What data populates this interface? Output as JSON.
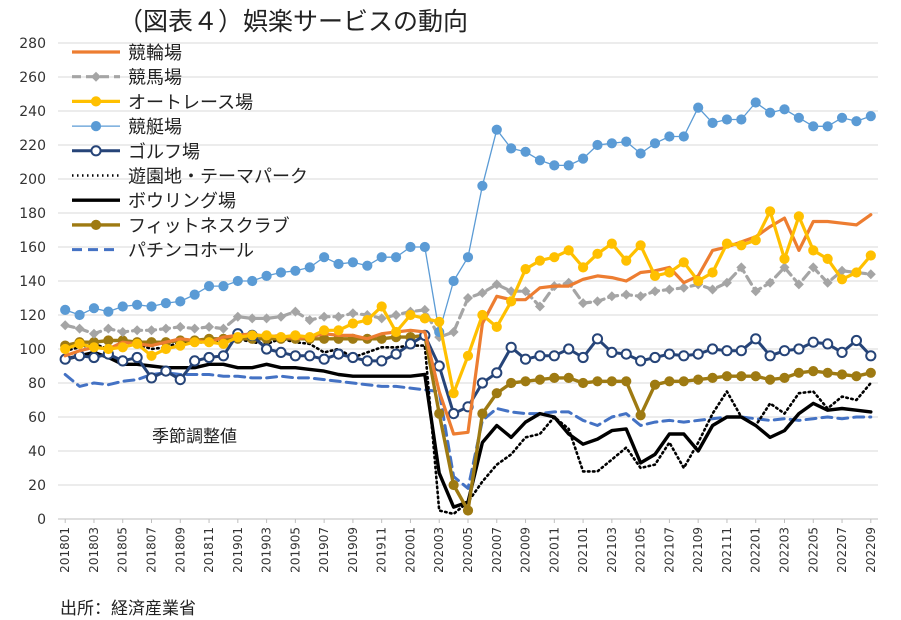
{
  "colors": {
    "keirin": "#ED7D31",
    "keiba": "#A5A5A5",
    "autorace": "#FFC000",
    "kyotei": "#5B9BD5",
    "golf": "#264478",
    "yuenchi": "#000000",
    "bowling": "#000000",
    "fitness": "#9E7A12",
    "pachinko": "#4472C4"
  },
  "chart_data": {
    "type": "line",
    "title": "（図表４）娯楽サービスの動向",
    "annotation": "季節調整値",
    "source": "出所：経済産業省",
    "ylim": [
      0,
      280
    ],
    "yticks": [
      0,
      20,
      40,
      60,
      80,
      100,
      120,
      140,
      160,
      180,
      200,
      220,
      240,
      260,
      280
    ],
    "x_tick_labels": [
      "201801",
      "201803",
      "201805",
      "201807",
      "201809",
      "201811",
      "201901",
      "201903",
      "201905",
      "201907",
      "201909",
      "201911",
      "202001",
      "202003",
      "202005",
      "202007",
      "202009",
      "202011",
      "202101",
      "202103",
      "202105",
      "202107",
      "202109",
      "202111",
      "202201",
      "202203",
      "202205",
      "202207",
      "202209"
    ],
    "x": [
      "201801",
      "201802",
      "201803",
      "201804",
      "201805",
      "201806",
      "201807",
      "201808",
      "201809",
      "201810",
      "201811",
      "201812",
      "201901",
      "201902",
      "201903",
      "201904",
      "201905",
      "201906",
      "201907",
      "201908",
      "201909",
      "201910",
      "201911",
      "201912",
      "202001",
      "202002",
      "202003",
      "202004",
      "202005",
      "202006",
      "202007",
      "202008",
      "202009",
      "202010",
      "202011",
      "202012",
      "202101",
      "202102",
      "202103",
      "202104",
      "202105",
      "202106",
      "202107",
      "202108",
      "202109",
      "202110",
      "202111",
      "202112",
      "202201",
      "202202",
      "202203",
      "202204",
      "202205",
      "202206",
      "202207",
      "202208",
      "202209"
    ],
    "legend_position": "top-left",
    "series": [
      {
        "name": "競輪場",
        "key": "keirin",
        "style": "line-thick",
        "values": [
          96,
          99,
          101,
          100,
          104,
          103,
          102,
          104,
          106,
          105,
          104,
          107,
          108,
          109,
          107,
          108,
          106,
          107,
          109,
          108,
          108,
          106,
          109,
          110,
          111,
          110,
          75,
          50,
          51,
          115,
          131,
          129,
          129,
          136,
          137,
          137,
          141,
          143,
          142,
          140,
          145,
          146,
          148,
          139,
          143,
          158,
          160,
          163,
          166,
          172,
          177,
          158,
          175,
          175,
          174,
          173,
          179
        ]
      },
      {
        "name": "競馬場",
        "key": "keiba",
        "style": "dash-marker",
        "values": [
          114,
          112,
          109,
          112,
          110,
          111,
          111,
          112,
          113,
          112,
          113,
          112,
          119,
          118,
          118,
          119,
          122,
          117,
          119,
          119,
          121,
          120,
          118,
          120,
          122,
          123,
          107,
          110,
          130,
          133,
          138,
          134,
          134,
          125,
          137,
          139,
          127,
          128,
          131,
          132,
          131,
          134,
          135,
          136,
          138,
          135,
          139,
          148,
          134,
          139,
          148,
          138,
          148,
          139,
          146,
          145,
          144
        ]
      },
      {
        "name": "オートレース場",
        "key": "autorace",
        "style": "line-marker",
        "values": [
          100,
          103,
          101,
          100,
          101,
          103,
          96,
          100,
          102,
          104,
          104,
          103,
          107,
          108,
          108,
          107,
          108,
          107,
          111,
          111,
          115,
          117,
          125,
          110,
          120,
          118,
          116,
          74,
          96,
          120,
          113,
          128,
          147,
          152,
          154,
          158,
          148,
          156,
          162,
          152,
          161,
          143,
          145,
          151,
          140,
          145,
          162,
          161,
          164,
          181,
          153,
          178,
          158,
          153,
          141,
          145,
          155
        ]
      },
      {
        "name": "競艇場",
        "key": "kyotei",
        "style": "thin-marker",
        "values": [
          123,
          120,
          124,
          122,
          125,
          126,
          125,
          127,
          128,
          132,
          137,
          137,
          140,
          140,
          143,
          145,
          146,
          148,
          154,
          150,
          151,
          149,
          154,
          154,
          160,
          160,
          110,
          140,
          154,
          196,
          229,
          218,
          216,
          211,
          208,
          208,
          212,
          220,
          221,
          222,
          215,
          221,
          225,
          225,
          242,
          233,
          235,
          235,
          245,
          239,
          241,
          236,
          231,
          231,
          236,
          234,
          237
        ]
      },
      {
        "name": "ゴルフ場",
        "key": "golf",
        "style": "line-open-marker",
        "values": [
          94,
          96,
          95,
          97,
          93,
          95,
          83,
          87,
          82,
          93,
          95,
          96,
          109,
          108,
          100,
          98,
          96,
          96,
          94,
          97,
          95,
          93,
          93,
          97,
          103,
          108,
          90,
          62,
          66,
          80,
          86,
          101,
          94,
          96,
          96,
          100,
          95,
          106,
          98,
          97,
          93,
          95,
          97,
          96,
          97,
          100,
          99,
          99,
          106,
          96,
          99,
          100,
          104,
          103,
          98,
          105,
          96
        ]
      },
      {
        "name": "遊園地・テーマパーク",
        "key": "yuenchi",
        "style": "dotted",
        "values": [
          99,
          101,
          103,
          100,
          101,
          103,
          100,
          101,
          104,
          103,
          105,
          104,
          106,
          104,
          103,
          106,
          104,
          103,
          98,
          100,
          95,
          98,
          101,
          101,
          102,
          102,
          5,
          3,
          10,
          22,
          32,
          38,
          48,
          50,
          60,
          53,
          28,
          28,
          35,
          42,
          30,
          32,
          45,
          30,
          45,
          62,
          75,
          60,
          55,
          68,
          62,
          74,
          75,
          65,
          72,
          70,
          80
        ]
      },
      {
        "name": "ボウリング場",
        "key": "bowling",
        "style": "line-bold",
        "values": [
          94,
          96,
          98,
          95,
          91,
          91,
          90,
          89,
          89,
          89,
          91,
          91,
          89,
          89,
          91,
          89,
          89,
          88,
          87,
          85,
          84,
          84,
          84,
          84,
          84,
          85,
          27,
          7,
          10,
          45,
          55,
          48,
          57,
          62,
          60,
          50,
          44,
          47,
          52,
          53,
          33,
          38,
          50,
          50,
          40,
          55,
          60,
          60,
          55,
          48,
          52,
          62,
          68,
          64,
          65,
          64,
          63
        ]
      },
      {
        "name": "フィットネスクラブ",
        "key": "fitness",
        "style": "line-marker-thick",
        "values": [
          102,
          104,
          104,
          105,
          105,
          104,
          104,
          104,
          105,
          105,
          106,
          106,
          106,
          106,
          106,
          106,
          106,
          106,
          106,
          106,
          106,
          106,
          106,
          107,
          107,
          108,
          62,
          20,
          5,
          62,
          74,
          80,
          81,
          82,
          83,
          83,
          80,
          81,
          81,
          81,
          61,
          79,
          81,
          81,
          82,
          83,
          84,
          84,
          84,
          82,
          83,
          86,
          87,
          86,
          85,
          84,
          86
        ]
      },
      {
        "name": "パチンコホール",
        "key": "pachinko",
        "style": "dashed",
        "values": [
          85,
          78,
          80,
          79,
          81,
          82,
          85,
          86,
          85,
          85,
          85,
          84,
          84,
          83,
          83,
          84,
          83,
          83,
          82,
          81,
          80,
          79,
          78,
          78,
          77,
          76,
          75,
          25,
          18,
          58,
          65,
          63,
          62,
          62,
          63,
          63,
          58,
          55,
          60,
          62,
          55,
          57,
          58,
          57,
          58,
          59,
          60,
          60,
          59,
          58,
          59,
          58,
          59,
          60,
          59,
          60,
          60
        ]
      }
    ]
  }
}
